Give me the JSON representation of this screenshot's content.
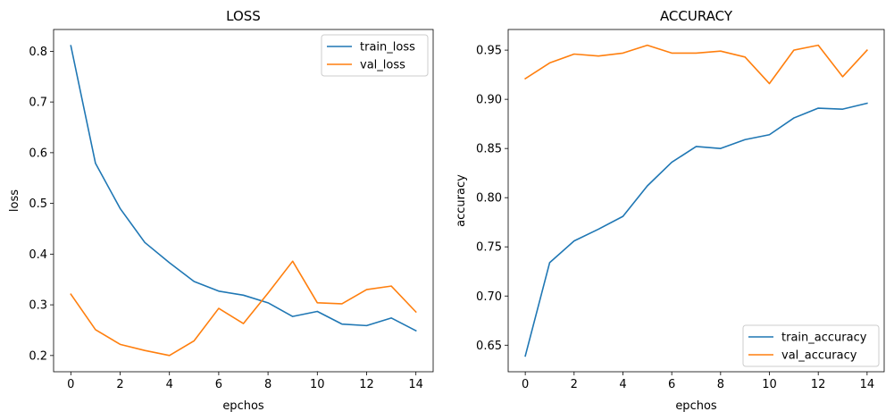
{
  "chart_data": [
    {
      "type": "line",
      "title": "LOSS",
      "xlabel": "epchos",
      "ylabel": "loss",
      "x": [
        0,
        1,
        2,
        3,
        4,
        5,
        6,
        7,
        8,
        9,
        10,
        11,
        12,
        13,
        14
      ],
      "xlim": [
        -0.7,
        14.7
      ],
      "ylim": [
        0.168,
        0.843
      ],
      "xticks": [
        0,
        2,
        4,
        6,
        8,
        10,
        12,
        14
      ],
      "yticks": [
        0.2,
        0.3,
        0.4,
        0.5,
        0.6,
        0.7,
        0.8
      ],
      "ytick_labels": [
        "0.2",
        "0.3",
        "0.4",
        "0.5",
        "0.6",
        "0.7",
        "0.8"
      ],
      "grid": false,
      "legend_position": "upper right",
      "series": [
        {
          "name": "train_loss",
          "color": "#1f77b4",
          "values": [
            0.811,
            0.579,
            0.49,
            0.423,
            0.383,
            0.346,
            0.327,
            0.319,
            0.304,
            0.277,
            0.287,
            0.262,
            0.259,
            0.274,
            0.249
          ]
        },
        {
          "name": "val_loss",
          "color": "#ff7f0e",
          "values": [
            0.321,
            0.251,
            0.222,
            0.21,
            0.2,
            0.229,
            0.293,
            0.263,
            0.323,
            0.386,
            0.304,
            0.302,
            0.33,
            0.337,
            0.286
          ]
        }
      ]
    },
    {
      "type": "line",
      "title": "ACCURACY",
      "xlabel": "epchos",
      "ylabel": "accuracy",
      "x": [
        0,
        1,
        2,
        3,
        4,
        5,
        6,
        7,
        8,
        9,
        10,
        11,
        12,
        13,
        14
      ],
      "xlim": [
        -0.7,
        14.7
      ],
      "ylim": [
        0.623,
        0.971
      ],
      "xticks": [
        0,
        2,
        4,
        6,
        8,
        10,
        12,
        14
      ],
      "yticks": [
        0.65,
        0.7,
        0.75,
        0.8,
        0.85,
        0.9,
        0.95
      ],
      "ytick_labels": [
        "0.65",
        "0.70",
        "0.75",
        "0.80",
        "0.85",
        "0.90",
        "0.95"
      ],
      "grid": false,
      "legend_position": "lower right",
      "series": [
        {
          "name": "train_accuracy",
          "color": "#1f77b4",
          "values": [
            0.639,
            0.734,
            0.756,
            0.768,
            0.781,
            0.812,
            0.836,
            0.852,
            0.85,
            0.859,
            0.864,
            0.881,
            0.891,
            0.89,
            0.896
          ]
        },
        {
          "name": "val_accuracy",
          "color": "#ff7f0e",
          "values": [
            0.921,
            0.937,
            0.946,
            0.944,
            0.947,
            0.955,
            0.947,
            0.947,
            0.949,
            0.943,
            0.916,
            0.95,
            0.955,
            0.923,
            0.95
          ]
        }
      ]
    }
  ]
}
